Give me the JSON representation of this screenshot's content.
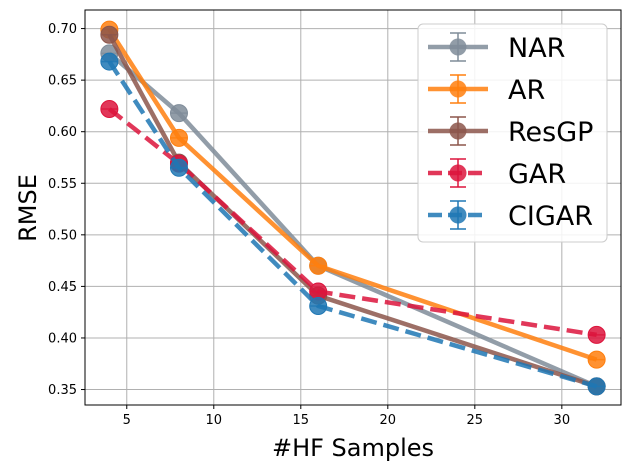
{
  "chart_data": {
    "type": "line",
    "title": "",
    "xlabel": "#HF Samples",
    "ylabel": "RMSE",
    "xlim": [
      2.6,
      33.4
    ],
    "ylim": [
      0.335,
      0.718
    ],
    "xticks": [
      5,
      10,
      15,
      20,
      25,
      30
    ],
    "yticks": [
      0.35,
      0.4,
      0.45,
      0.5,
      0.55,
      0.6,
      0.65,
      0.7
    ],
    "grid": true,
    "legend": "top-right",
    "x": [
      4,
      8,
      16,
      32
    ],
    "series": [
      {
        "name": "NAR",
        "values": [
          0.676,
          0.618,
          0.47,
          0.353
        ],
        "color": "#7f8c99",
        "dash": "solid"
      },
      {
        "name": "AR",
        "values": [
          0.699,
          0.594,
          0.47,
          0.379
        ],
        "color": "#ff7f0e",
        "dash": "solid"
      },
      {
        "name": "ResGP",
        "values": [
          0.694,
          0.57,
          0.441,
          0.353
        ],
        "color": "#8c564b",
        "dash": "solid"
      },
      {
        "name": "GAR",
        "values": [
          0.622,
          0.569,
          0.445,
          0.403
        ],
        "color": "#dc143c",
        "dash": "dashed"
      },
      {
        "name": "CIGAR",
        "values": [
          0.668,
          0.565,
          0.431,
          0.353
        ],
        "color": "#1f77b4",
        "dash": "dashed"
      }
    ]
  }
}
